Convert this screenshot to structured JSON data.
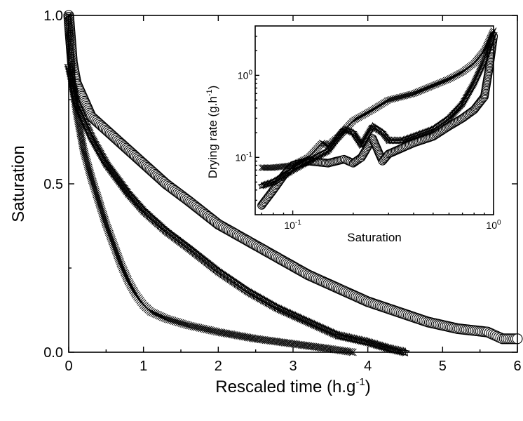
{
  "chart_data": [
    {
      "type": "scatter",
      "xlabel": "Rescaled time",
      "xlabel_unit_base": "(h.g",
      "xlabel_unit_exp": "-1",
      "xlabel_unit_end": ")",
      "ylabel": "Saturation",
      "xlim": [
        0,
        6
      ],
      "ylim": [
        0,
        1
      ],
      "x_ticks": [
        0,
        1,
        2,
        3,
        4,
        5,
        6
      ],
      "x_tick_labels": [
        "0",
        "1",
        "2",
        "3",
        "4",
        "5",
        "6"
      ],
      "y_ticks": [
        0,
        0.5,
        1
      ],
      "y_tick_labels": [
        "0.0",
        "0.5",
        "1.0"
      ],
      "grid": false,
      "legend": "none",
      "series": [
        {
          "marker": "circle",
          "x": [
            0.0,
            0.05,
            0.1,
            0.2,
            0.3,
            0.5,
            0.7,
            1.0,
            1.3,
            1.6,
            2.0,
            2.4,
            2.8,
            3.2,
            3.6,
            4.0,
            4.4,
            4.8,
            5.2,
            5.6,
            5.7,
            5.8,
            6.0
          ],
          "y": [
            1.0,
            0.86,
            0.8,
            0.75,
            0.7,
            0.66,
            0.62,
            0.56,
            0.5,
            0.45,
            0.38,
            0.33,
            0.28,
            0.23,
            0.19,
            0.15,
            0.12,
            0.09,
            0.07,
            0.06,
            0.05,
            0.04,
            0.04
          ]
        },
        {
          "marker": "star",
          "x": [
            0.0,
            0.05,
            0.1,
            0.2,
            0.3,
            0.5,
            0.8,
            1.0,
            1.3,
            1.6,
            2.0,
            2.4,
            2.8,
            3.2,
            3.6,
            4.0,
            4.3,
            4.5
          ],
          "y": [
            0.85,
            0.8,
            0.74,
            0.69,
            0.64,
            0.56,
            0.47,
            0.42,
            0.36,
            0.31,
            0.24,
            0.18,
            0.13,
            0.09,
            0.05,
            0.03,
            0.01,
            0.0
          ]
        },
        {
          "marker": "cross",
          "x": [
            0.0,
            0.05,
            0.1,
            0.2,
            0.3,
            0.4,
            0.5,
            0.6,
            0.7,
            0.8,
            0.9,
            1.0,
            1.1,
            1.3,
            1.6,
            2.0,
            2.5,
            3.0,
            3.5,
            3.8
          ],
          "y": [
            1.0,
            0.8,
            0.72,
            0.6,
            0.52,
            0.45,
            0.38,
            0.32,
            0.26,
            0.21,
            0.17,
            0.14,
            0.12,
            0.1,
            0.08,
            0.06,
            0.04,
            0.025,
            0.01,
            0.0
          ]
        }
      ]
    },
    {
      "type": "scatter",
      "xlabel": "Saturation",
      "ylabel_base": "Drying rate (g.h",
      "ylabel_exp": "-1",
      "ylabel_end": ")",
      "x_scale": "log",
      "y_scale": "log",
      "xlim": [
        0.065,
        1.0
      ],
      "ylim": [
        0.02,
        4.0
      ],
      "x_ticks": [
        0.1,
        1
      ],
      "x_tick_labels": [
        {
          "base": "10",
          "exp": "-1"
        },
        {
          "base": "10",
          "exp": "0"
        }
      ],
      "y_ticks": [
        0.1,
        1
      ],
      "y_tick_labels": [
        {
          "base": "10",
          "exp": "-1"
        },
        {
          "base": "10",
          "exp": "0"
        }
      ],
      "grid": false,
      "legend": "none",
      "series": [
        {
          "marker": "circle",
          "x": [
            0.07,
            0.08,
            0.09,
            0.1,
            0.12,
            0.15,
            0.18,
            0.2,
            0.22,
            0.25,
            0.27,
            0.28,
            0.3,
            0.35,
            0.4,
            0.5,
            0.6,
            0.7,
            0.8,
            0.9,
            0.95,
            1.0
          ],
          "y": [
            0.026,
            0.04,
            0.06,
            0.08,
            0.09,
            0.085,
            0.095,
            0.085,
            0.1,
            0.17,
            0.11,
            0.09,
            0.11,
            0.13,
            0.15,
            0.18,
            0.24,
            0.3,
            0.38,
            0.55,
            1.2,
            3.0
          ]
        },
        {
          "marker": "star",
          "x": [
            0.07,
            0.08,
            0.1,
            0.12,
            0.15,
            0.18,
            0.2,
            0.22,
            0.25,
            0.28,
            0.3,
            0.35,
            0.4,
            0.5,
            0.6,
            0.7,
            0.8,
            0.9,
            1.0
          ],
          "y": [
            0.045,
            0.05,
            0.07,
            0.09,
            0.12,
            0.22,
            0.2,
            0.14,
            0.24,
            0.2,
            0.16,
            0.16,
            0.18,
            0.22,
            0.3,
            0.45,
            0.8,
            1.5,
            3.2
          ]
        },
        {
          "marker": "cross",
          "x": [
            0.07,
            0.08,
            0.1,
            0.12,
            0.14,
            0.15,
            0.17,
            0.2,
            0.25,
            0.3,
            0.35,
            0.4,
            0.5,
            0.6,
            0.7,
            0.8,
            0.9,
            1.0
          ],
          "y": [
            0.075,
            0.075,
            0.08,
            0.1,
            0.15,
            0.14,
            0.18,
            0.28,
            0.38,
            0.5,
            0.55,
            0.6,
            0.75,
            0.9,
            1.1,
            1.4,
            2.0,
            3.5
          ]
        }
      ]
    }
  ]
}
